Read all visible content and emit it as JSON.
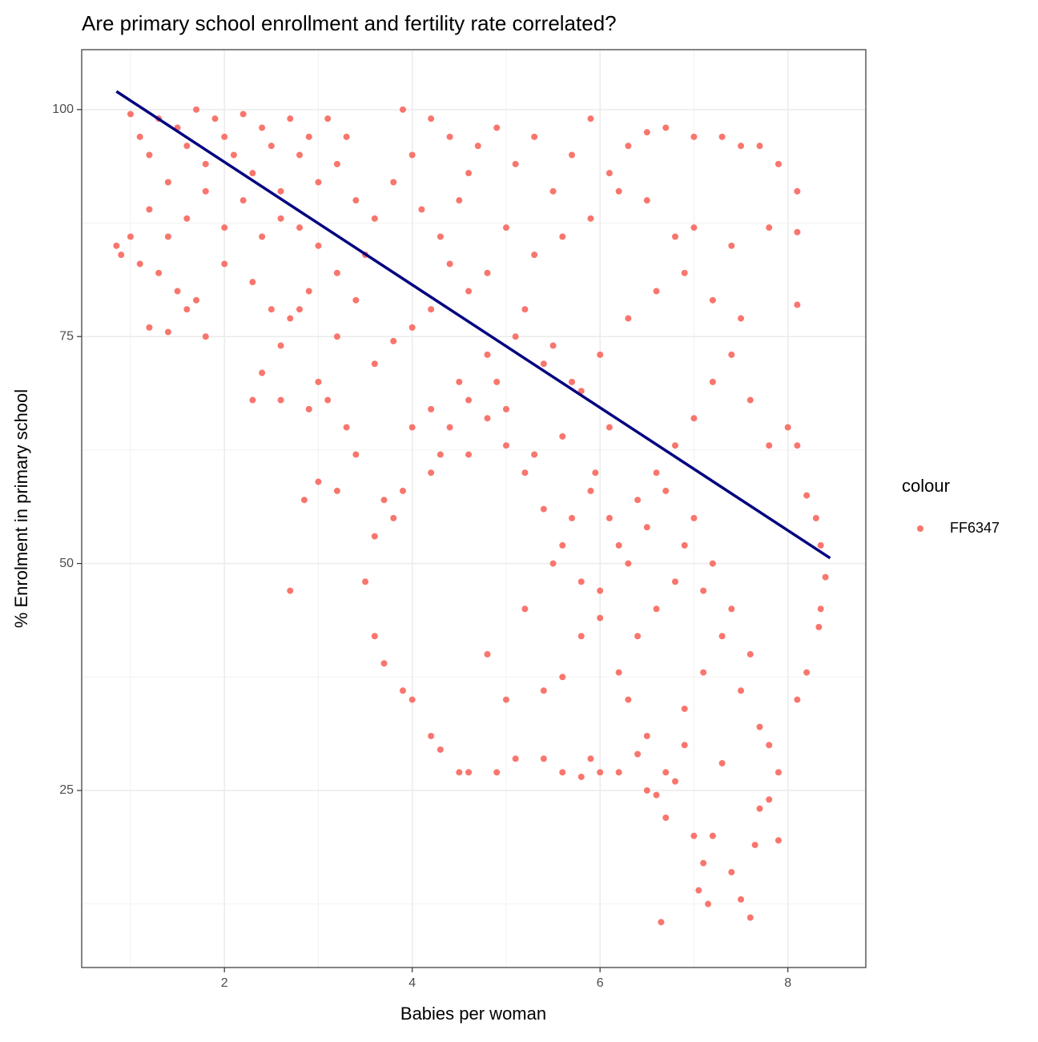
{
  "chart_data": {
    "type": "scatter",
    "title": "Are primary school enrollment and fertility rate correlated?",
    "x_label": "Babies per woman",
    "y_label": "% Enrolment in primary school",
    "legend_title": "colour",
    "legend_position": "right",
    "grid": true,
    "xlim": [
      0.48,
      8.83
    ],
    "xticks": [
      2,
      4,
      6,
      8
    ],
    "ylim": [
      5.5,
      106.6
    ],
    "yticks": [
      25,
      50,
      75,
      100
    ],
    "series": [
      {
        "name": "FF6347",
        "color": "#F8766D",
        "x": [
          1.0,
          1.1,
          1.2,
          1.3,
          1.4,
          1.5,
          1.6,
          1.7,
          1.8,
          1.9,
          2.0,
          2.1,
          2.2,
          2.3,
          2.4,
          2.5,
          2.6,
          2.7,
          2.8,
          2.9,
          3.0,
          3.1,
          3.2,
          3.3,
          3.4,
          1.2,
          1.4,
          1.6,
          1.8,
          2.0,
          2.2,
          2.4,
          2.6,
          2.8,
          3.0,
          0.85,
          0.9,
          1.0,
          1.1,
          1.3,
          1.5,
          1.6,
          1.4,
          1.8,
          1.2,
          1.7,
          2.0,
          2.3,
          2.5,
          2.7,
          2.9,
          3.2,
          3.5,
          3.6,
          3.8,
          4.0,
          4.2,
          4.4,
          4.6,
          3.9,
          4.1,
          4.3,
          4.5,
          4.7,
          4.9,
          5.1,
          5.3,
          5.5,
          5.7,
          5.9,
          6.1,
          6.3,
          6.5,
          6.7,
          7.0,
          7.3,
          7.5,
          7.7,
          7.9,
          8.1,
          8.1,
          7.8,
          7.4,
          7.0,
          6.8,
          6.5,
          6.2,
          5.9,
          5.6,
          5.3,
          5.0,
          4.8,
          4.6,
          4.4,
          4.2,
          4.0,
          3.8,
          3.6,
          3.4,
          3.2,
          3.0,
          2.8,
          2.6,
          2.4,
          2.3,
          2.6,
          2.7,
          2.9,
          3.1,
          3.3,
          3.2,
          3.0,
          2.85,
          3.4,
          3.5,
          3.6,
          3.7,
          3.8,
          3.9,
          4.0,
          4.2,
          4.3,
          4.5,
          4.6,
          4.9,
          5.1,
          5.4,
          5.6,
          5.8,
          5.9,
          6.0,
          6.2,
          6.4,
          6.5,
          6.6,
          6.65,
          6.7,
          6.8,
          6.9,
          7.0,
          7.05,
          7.1,
          7.15,
          7.2,
          7.3,
          7.4,
          7.5,
          7.6,
          7.65,
          7.7,
          7.8,
          7.9,
          7.9,
          7.8,
          7.6,
          7.4,
          7.2,
          7.0,
          6.8,
          6.6,
          6.4,
          6.2,
          6.0,
          5.8,
          5.6,
          5.4,
          5.2,
          5.0,
          4.8,
          4.6,
          4.4,
          4.2,
          4.0,
          4.8,
          5.0,
          5.2,
          5.4,
          5.6,
          5.8,
          6.0,
          6.2,
          6.4,
          6.6,
          6.8,
          7.0,
          7.2,
          7.4,
          7.6,
          7.8,
          8.0,
          8.1,
          8.2,
          8.3,
          8.35,
          8.4,
          8.35,
          8.33,
          8.2,
          8.1,
          8.1,
          7.5,
          7.2,
          6.9,
          6.6,
          6.3,
          6.0,
          5.7,
          5.4,
          5.1,
          4.8,
          4.5,
          4.2,
          5.0,
          5.3,
          5.6,
          5.9,
          6.1,
          6.3,
          6.5,
          6.7,
          6.9,
          7.1,
          7.3,
          7.5,
          7.7,
          6.3,
          6.5,
          6.7,
          6.9,
          7.1,
          5.95,
          5.7,
          5.5,
          6.1,
          5.8,
          5.5,
          5.2,
          4.9,
          4.6,
          4.3,
          3.9,
          3.6,
          3.7
        ],
        "y": [
          99.5,
          97,
          95,
          99,
          92,
          98,
          96,
          100,
          94,
          99,
          97,
          95,
          99.5,
          93,
          98,
          96,
          91,
          99,
          95,
          97,
          92,
          99,
          94,
          97,
          90,
          89,
          86,
          88,
          91,
          87,
          90,
          86,
          88,
          87,
          85,
          85,
          84,
          86,
          83,
          82,
          80,
          78,
          75.5,
          75,
          76,
          79,
          83,
          81,
          78,
          77,
          80,
          82,
          84,
          88,
          92,
          95,
          99,
          97,
          93,
          100,
          89,
          86,
          90,
          96,
          98,
          94,
          97,
          91,
          95,
          99,
          93,
          96,
          97.5,
          98,
          97,
          97,
          96,
          96,
          94,
          91,
          86.5,
          87,
          85,
          87,
          86,
          90,
          91,
          88,
          86,
          84,
          87,
          82,
          80,
          83,
          78,
          76,
          74.5,
          72,
          79,
          75,
          70,
          78,
          74,
          71,
          68,
          68,
          47,
          67,
          68,
          65,
          58,
          59,
          57,
          62,
          48,
          42,
          39,
          55,
          36,
          35,
          31,
          29.5,
          27,
          27,
          27,
          28.5,
          28.5,
          27,
          26.5,
          28.5,
          27,
          27,
          29,
          25,
          24.5,
          10.5,
          22,
          26,
          30,
          20,
          14,
          17,
          12.5,
          20,
          28,
          16,
          13,
          11,
          19,
          23,
          24,
          19.5,
          27,
          30,
          40,
          45,
          50,
          55,
          48,
          45,
          42,
          38,
          44,
          48,
          52,
          56,
          60,
          63,
          66,
          62,
          65,
          60,
          65,
          40,
          35,
          45,
          36,
          37.5,
          42,
          47,
          52,
          57,
          60,
          63,
          66,
          70,
          73,
          68,
          63,
          65,
          63,
          57.5,
          55,
          52,
          48.5,
          45,
          43,
          38,
          35,
          78.5,
          77,
          79,
          82,
          80,
          77,
          73,
          70,
          72,
          75,
          73,
          70,
          67,
          67,
          62,
          64,
          58,
          55,
          50,
          54,
          58,
          52,
          47,
          42,
          36,
          32,
          35,
          31,
          27,
          34,
          38,
          60,
          55,
          50,
          65,
          69,
          74,
          78,
          70,
          68,
          62,
          58,
          53,
          57
        ]
      }
    ],
    "trend_line": {
      "color": "#000080",
      "x": [
        0.85,
        8.45
      ],
      "y": [
        102,
        50.6
      ]
    }
  }
}
